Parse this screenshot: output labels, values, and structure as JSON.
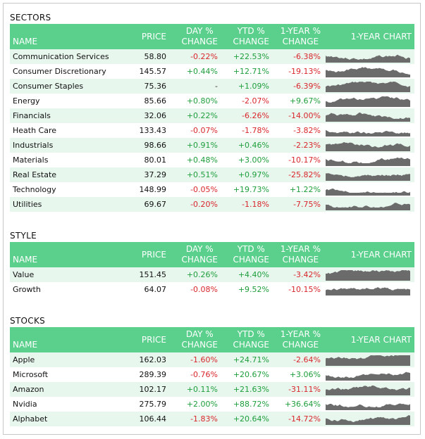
{
  "header": {
    "name": "NAME",
    "price": "PRICE",
    "day_a": "DAY %",
    "day_b": "CHANGE",
    "ytd_a": "YTD %",
    "ytd_b": "CHANGE",
    "yr_a": "1-YEAR %",
    "yr_b": "CHANGE",
    "chart": "1-YEAR CHART"
  },
  "colors": {
    "header_bg": "#5bd08c",
    "stripe": "#e8f7ee",
    "positive": "#1e9e3c",
    "negative": "#d9262c",
    "spark": "#6b6b6b"
  },
  "sections": [
    {
      "title": "SECTORS",
      "rows": [
        {
          "name": "Communication Services",
          "price": "58.80",
          "day": "-0.22%",
          "ytd": "+22.53%",
          "yr": "-6.38%"
        },
        {
          "name": "Consumer Discretionary",
          "price": "145.57",
          "day": "+0.44%",
          "ytd": "+12.71%",
          "yr": "-19.13%"
        },
        {
          "name": "Consumer Staples",
          "price": "75.36",
          "day": "-",
          "ytd": "+1.09%",
          "yr": "-6.39%"
        },
        {
          "name": "Energy",
          "price": "85.66",
          "day": "+0.80%",
          "ytd": "-2.07%",
          "yr": "+9.67%"
        },
        {
          "name": "Financials",
          "price": "32.06",
          "day": "+0.22%",
          "ytd": "-6.26%",
          "yr": "-14.00%"
        },
        {
          "name": "Heath Care",
          "price": "133.43",
          "day": "-0.07%",
          "ytd": "-1.78%",
          "yr": "-3.82%"
        },
        {
          "name": "Industrials",
          "price": "98.66",
          "day": "+0.91%",
          "ytd": "+0.46%",
          "yr": "-2.23%"
        },
        {
          "name": "Materials",
          "price": "80.01",
          "day": "+0.48%",
          "ytd": "+3.00%",
          "yr": "-10.17%"
        },
        {
          "name": "Real Estate",
          "price": "37.29",
          "day": "+0.51%",
          "ytd": "+0.97%",
          "yr": "-25.82%"
        },
        {
          "name": "Technology",
          "price": "148.99",
          "day": "-0.05%",
          "ytd": "+19.73%",
          "yr": "+1.22%"
        },
        {
          "name": "Utilities",
          "price": "69.67",
          "day": "-0.20%",
          "ytd": "-1.18%",
          "yr": "-7.75%"
        }
      ]
    },
    {
      "title": "STYLE",
      "rows": [
        {
          "name": "Value",
          "price": "151.45",
          "day": "+0.26%",
          "ytd": "+4.40%",
          "yr": "-3.42%"
        },
        {
          "name": "Growth",
          "price": "64.07",
          "day": "-0.08%",
          "ytd": "+9.52%",
          "yr": "-10.15%"
        }
      ]
    },
    {
      "title": "STOCKS",
      "rows": [
        {
          "name": "Apple",
          "price": "162.03",
          "day": "-1.60%",
          "ytd": "+24.71%",
          "yr": "-2.64%"
        },
        {
          "name": "Microsoft",
          "price": "289.39",
          "day": "-0.76%",
          "ytd": "+20.67%",
          "yr": "+3.06%"
        },
        {
          "name": "Amazon",
          "price": "102.17",
          "day": "+0.11%",
          "ytd": "+21.63%",
          "yr": "-31.11%"
        },
        {
          "name": "Nvidia",
          "price": "275.79",
          "day": "+2.00%",
          "ytd": "+88.72%",
          "yr": "+36.64%"
        },
        {
          "name": "Alphabet",
          "price": "106.44",
          "day": "-1.83%",
          "ytd": "+20.64%",
          "yr": "-14.72%"
        }
      ]
    }
  ]
}
